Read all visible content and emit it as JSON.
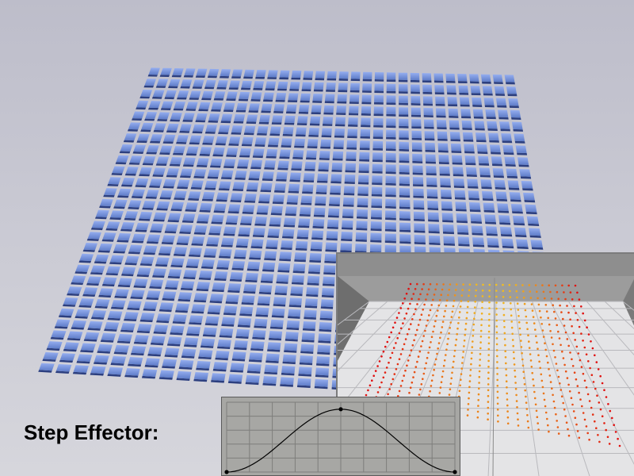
{
  "caption": {
    "text": "Step Effector:"
  },
  "scene": {
    "description_colors": {
      "background_top": "#bdbdca",
      "background_bottom": "#d6d6dc",
      "tile_top": "#7d9ae4",
      "tile_side": "#2c3f7f",
      "tile_shadow": "#ececf0"
    },
    "grid": {
      "rows": 28,
      "cols": 31
    }
  },
  "viewport_inset": {
    "colors": {
      "backdrop": "#8e8e8e",
      "floor": "#e4e4e6",
      "point_low": "#e01010",
      "point_high": "#f2c020"
    },
    "points_grid": {
      "rows": 24,
      "cols": 26
    }
  },
  "step_spline": {
    "colors": {
      "background": "#a7a7a4",
      "grid": "#7e7e7b",
      "curve": "#000000"
    },
    "curve_values": [
      0.0,
      0.5,
      0.93,
      1.0,
      0.5,
      0.0
    ],
    "control_points": [
      [
        0.0,
        0.0
      ],
      [
        0.5,
        1.0
      ],
      [
        1.0,
        0.0
      ]
    ]
  }
}
